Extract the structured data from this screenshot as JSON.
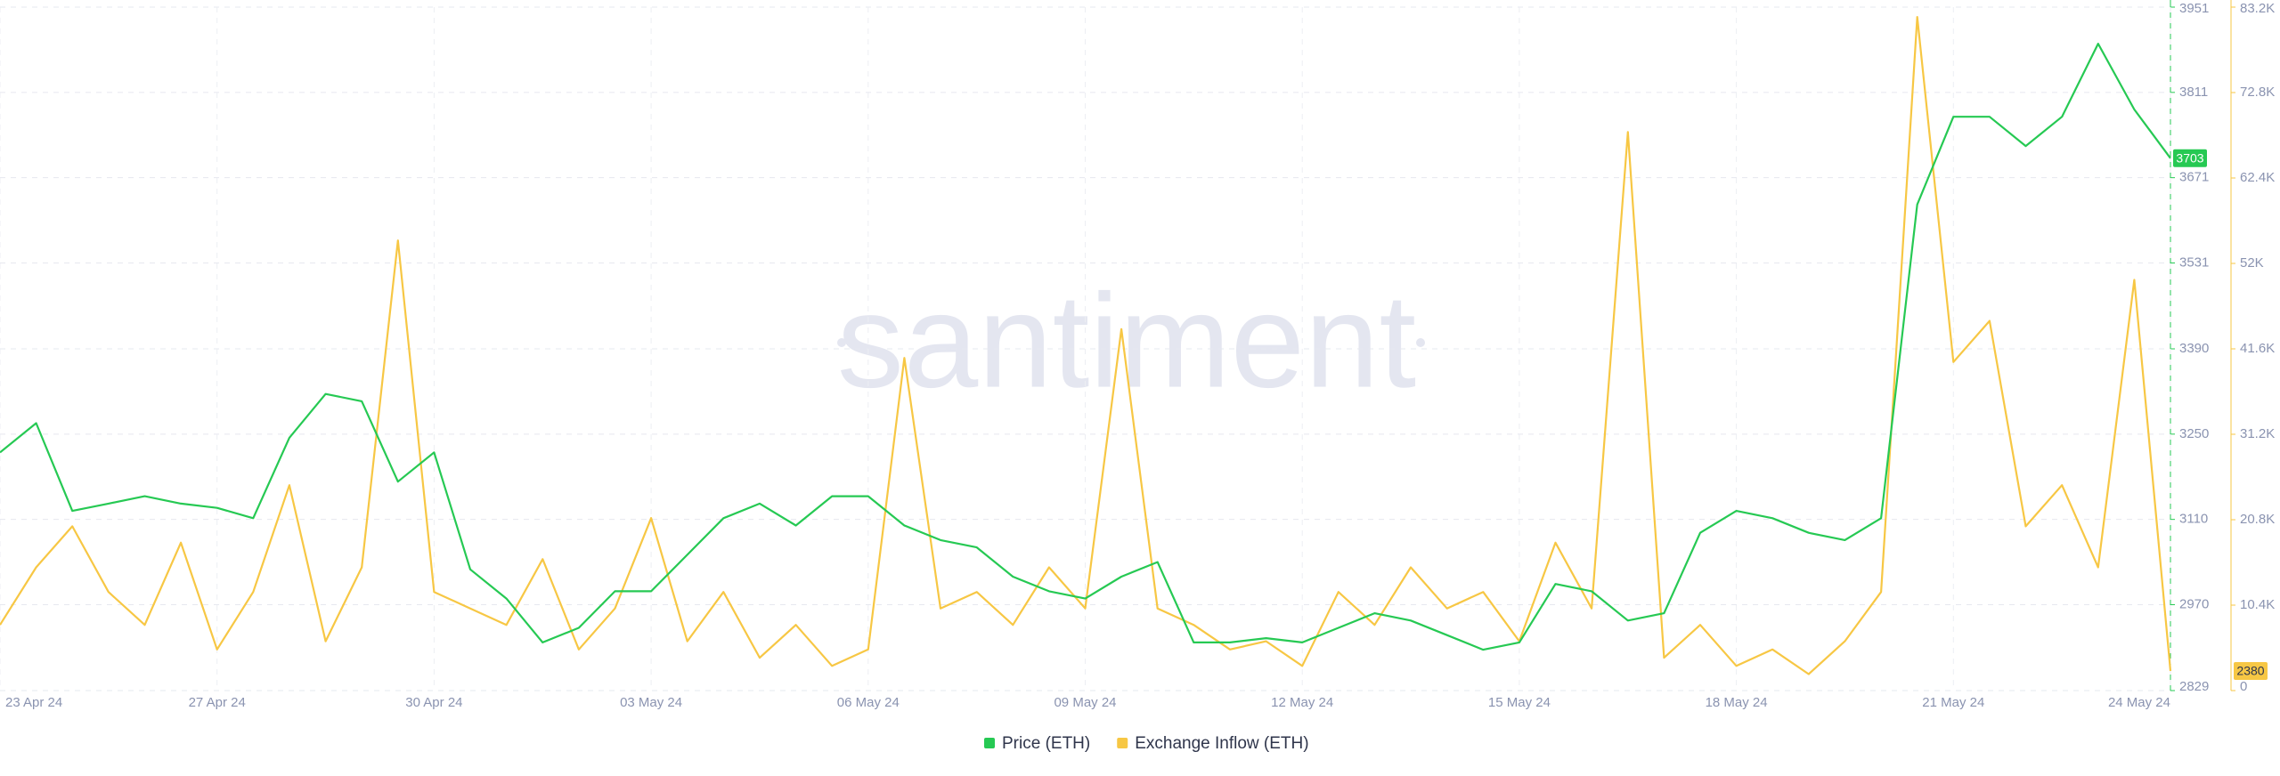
{
  "chart_data": {
    "type": "line",
    "watermark": "santiment",
    "categories": [
      "23 Apr 24",
      null,
      null,
      null,
      null,
      null,
      "27 Apr 24",
      null,
      null,
      null,
      null,
      null,
      "30 Apr 24",
      null,
      null,
      null,
      null,
      null,
      "03 May 24",
      null,
      null,
      null,
      null,
      null,
      "06 May 24",
      null,
      null,
      null,
      null,
      null,
      "09 May 24",
      null,
      null,
      null,
      null,
      null,
      "12 May 24",
      null,
      null,
      null,
      null,
      null,
      "15 May 24",
      null,
      null,
      null,
      null,
      null,
      "18 May 24",
      null,
      null,
      null,
      null,
      null,
      "21 May 24",
      null,
      null,
      null,
      null,
      null,
      "24 May 24"
    ],
    "series": [
      {
        "name": "Price (ETH)",
        "color": "#26c953",
        "axis": "y",
        "last_value": 3703,
        "values": [
          3220,
          3268,
          3124,
          3136,
          3148,
          3136,
          3129,
          3112,
          3244,
          3316,
          3304,
          3172,
          3220,
          3028,
          2980,
          2908,
          2932,
          2992,
          2992,
          3052,
          3112,
          3136,
          3100,
          3148,
          3148,
          3100,
          3076,
          3064,
          3016,
          2992,
          2980,
          3016,
          3040,
          2908,
          2908,
          2915,
          2908,
          2932,
          2956,
          2944,
          2920,
          2896,
          2908,
          3004,
          2992,
          2944,
          2956,
          3088,
          3124,
          3112,
          3088,
          3076,
          3112,
          3627,
          3771,
          3771,
          3723,
          3771,
          3891,
          3783,
          3703
        ]
      },
      {
        "name": "Exchange Inflow (ETH)",
        "color": "#f7c744",
        "axis": "y2",
        "last_value": 2380,
        "values": [
          8000,
          15000,
          20000,
          12000,
          8000,
          18000,
          5000,
          12000,
          25000,
          6000,
          15000,
          54800,
          12000,
          10000,
          8000,
          16000,
          5000,
          10000,
          21000,
          6000,
          12000,
          4000,
          8000,
          3000,
          5000,
          40500,
          10000,
          12000,
          8000,
          15000,
          10000,
          44000,
          10000,
          8000,
          5000,
          6000,
          3000,
          12000,
          8000,
          15000,
          10000,
          12000,
          6000,
          18000,
          10000,
          68000,
          4000,
          8000,
          3000,
          5000,
          2000,
          6000,
          12000,
          82000,
          40000,
          45000,
          20000,
          25000,
          15000,
          50000,
          2380
        ]
      }
    ],
    "ylim": [
      2829,
      3951
    ],
    "yticks": [
      3951,
      3811,
      3671,
      3531,
      3390,
      3250,
      3110,
      2970,
      2829
    ],
    "y2lim": [
      0,
      83200
    ],
    "y2ticks": [
      {
        "value": 83200,
        "label": "83.2K"
      },
      {
        "value": 72800,
        "label": "72.8K"
      },
      {
        "value": 62400,
        "label": "62.4K"
      },
      {
        "value": 52000,
        "label": "52K"
      },
      {
        "value": 41600,
        "label": "41.6K"
      },
      {
        "value": 31200,
        "label": "31.2K"
      },
      {
        "value": 20800,
        "label": "20.8K"
      },
      {
        "value": 10400,
        "label": "10.4K"
      },
      0
    ],
    "grid": true
  }
}
